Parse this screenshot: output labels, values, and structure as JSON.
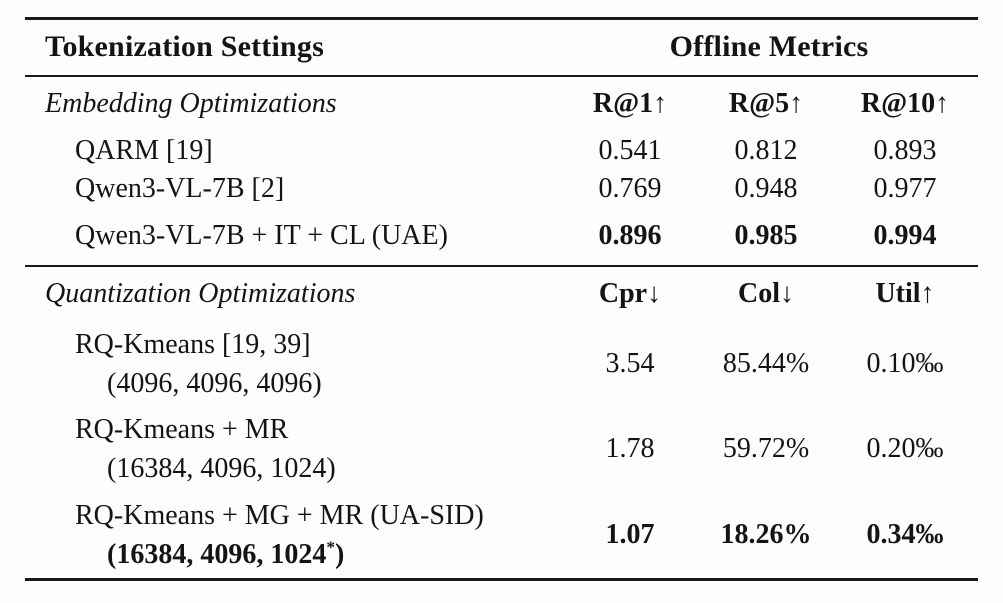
{
  "colors": {
    "background": "#fdfdfd",
    "text": "#141414",
    "rule": "#1a1a1a"
  },
  "table": {
    "header": {
      "settings": "Tokenization Settings",
      "metrics": "Offline Metrics"
    },
    "embedding": {
      "section_label": "Embedding Optimizations",
      "columns": [
        "R@1↑",
        "R@5↑",
        "R@10↑"
      ],
      "rows": [
        {
          "name": "QARM [19]",
          "values": [
            "0.541",
            "0.812",
            "0.893"
          ]
        },
        {
          "name": "Qwen3-VL-7B [2]",
          "values": [
            "0.769",
            "0.948",
            "0.977"
          ]
        },
        {
          "name": "Qwen3-VL-7B + IT + CL (UAE)",
          "values": [
            "0.896",
            "0.985",
            "0.994"
          ]
        }
      ]
    },
    "quantization": {
      "section_label": "Quantization Optimizations",
      "columns": [
        "Cpr↓",
        "Col↓",
        "Util↑"
      ],
      "rows": [
        {
          "name": "RQ-Kmeans [19, 39]",
          "detail_pre": "(4096, 4096, 4096)",
          "detail_sup": "",
          "detail_post": "",
          "values": [
            "3.54",
            "85.44%",
            "0.10‰"
          ]
        },
        {
          "name": "RQ-Kmeans + MR",
          "detail_pre": "(16384, 4096, 1024)",
          "detail_sup": "",
          "detail_post": "",
          "values": [
            "1.78",
            "59.72%",
            "0.20‰"
          ]
        },
        {
          "name": "RQ-Kmeans + MG + MR (UA-SID)",
          "detail_pre": "(16384, 4096, 1024",
          "detail_sup": "*",
          "detail_post": ")",
          "values": [
            "1.07",
            "18.26%",
            "0.34‰"
          ]
        }
      ]
    }
  }
}
